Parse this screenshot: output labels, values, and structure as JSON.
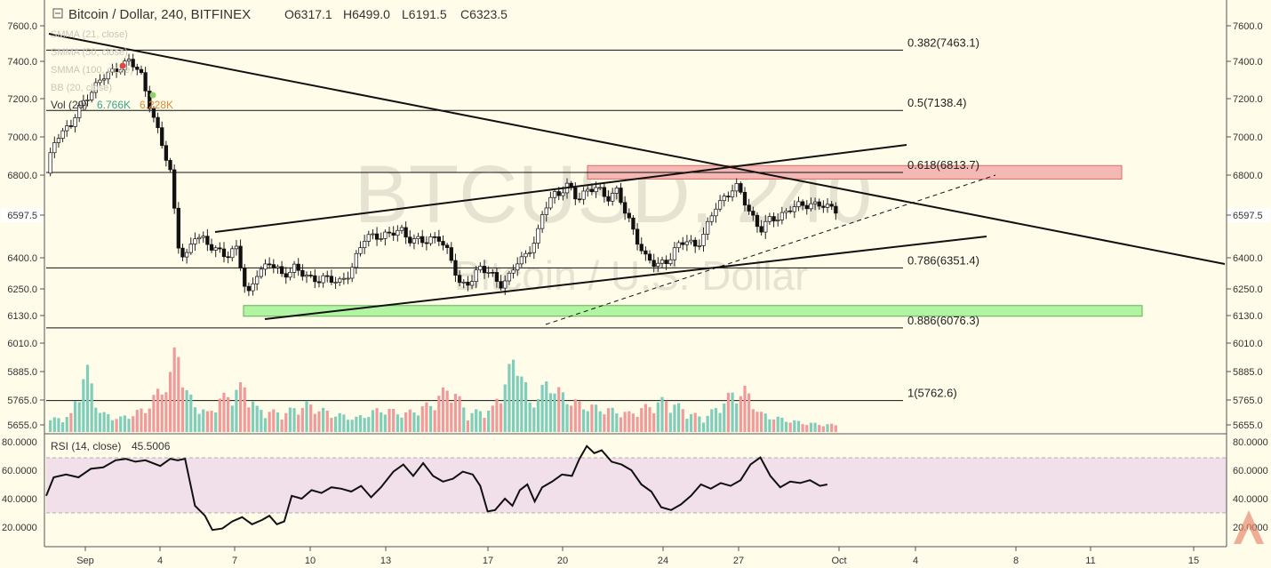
{
  "header": {
    "symbol": "Bitcoin / Dollar, 240, BITFINEX",
    "open": "O6317.1",
    "high": "H6499.0",
    "low": "L6191.5",
    "close": "C6323.5"
  },
  "indicators": [
    "SMMA (21, close)",
    "SMMA (50, close)",
    "SMMA (100, close)",
    "BB (20, close)"
  ],
  "volume_legend": {
    "label": "Vol (20)",
    "value_a": "6.766K",
    "value_b": "6.228K"
  },
  "watermark": {
    "ticker": "BTCUSD, 240",
    "name": "Bitcoin / U.S. Dollar"
  },
  "rsi_legend": {
    "label": "RSI (14, close)",
    "value": "45.5006"
  },
  "colors": {
    "background": "#fffce9",
    "up_volume": "#7fcdbb",
    "down_volume": "#f19a9a",
    "fib_line": "#111111",
    "resistance_zone": "#f4b9b4",
    "support_zone": "#b3f4a4",
    "rsi_band": "#f1e0ea",
    "price_tag": "#ffffff"
  },
  "chart_data": [
    {
      "type": "candlestick",
      "title": "Bitcoin / Dollar, 240, BITFINEX",
      "y_ticks": [
        "7600.0",
        "7400.0",
        "7200.0",
        "7000.0",
        "6800.0",
        "6597.5",
        "6400.0",
        "6250.0",
        "6130.0",
        "6010.0",
        "5885.0",
        "5765.0",
        "5655.0"
      ],
      "y_tick_values": [
        7600,
        7400,
        7200,
        7000,
        6800,
        6597.5,
        6400,
        6250,
        6130,
        6010,
        5885,
        5765,
        5655
      ],
      "current_price_label": "6597.5",
      "x_ticks": [
        "Sep",
        "4",
        "7",
        "10",
        "13",
        "17",
        "20",
        "24",
        "27",
        "Oct",
        "4",
        "8",
        "11",
        "15"
      ],
      "fib_levels": [
        {
          "label": "0.382(7463.1)",
          "value": 7463.1
        },
        {
          "label": "0.5(7138.4)",
          "value": 7138.4
        },
        {
          "label": "0.618(6813.7)",
          "value": 6813.7
        },
        {
          "label": "0.786(6351.4)",
          "value": 6351.4
        },
        {
          "label": "0.886(6076.3)",
          "value": 6076.3
        },
        {
          "label": "1(5762.6)",
          "value": 5762.6
        }
      ],
      "zones": [
        {
          "kind": "resistance",
          "low": 6780,
          "high": 6850
        },
        {
          "kind": "support",
          "low": 6135,
          "high": 6175
        }
      ],
      "price_path": [
        [
          0.0,
          6810
        ],
        [
          0.4,
          7010
        ],
        [
          1.0,
          7060
        ],
        [
          1.6,
          7210
        ],
        [
          2.2,
          7300
        ],
        [
          2.8,
          7360
        ],
        [
          3.3,
          7400
        ],
        [
          3.8,
          7340
        ],
        [
          4.2,
          7160
        ],
        [
          4.6,
          6980
        ],
        [
          5.0,
          6820
        ],
        [
          5.3,
          6480
        ],
        [
          5.6,
          6380
        ],
        [
          6.0,
          6500
        ],
        [
          6.4,
          6490
        ],
        [
          6.9,
          6420
        ],
        [
          7.3,
          6410
        ],
        [
          7.7,
          6460
        ],
        [
          8.1,
          6190
        ],
        [
          8.5,
          6330
        ],
        [
          9.0,
          6380
        ],
        [
          9.5,
          6310
        ],
        [
          10.0,
          6360
        ],
        [
          10.6,
          6290
        ],
        [
          11.2,
          6310
        ],
        [
          11.8,
          6270
        ],
        [
          12.3,
          6350
        ],
        [
          12.8,
          6480
        ],
        [
          13.3,
          6510
        ],
        [
          13.8,
          6500
        ],
        [
          14.3,
          6530
        ],
        [
          14.8,
          6480
        ],
        [
          15.3,
          6470
        ],
        [
          15.8,
          6510
        ],
        [
          16.3,
          6390
        ],
        [
          16.7,
          6270
        ],
        [
          17.1,
          6290
        ],
        [
          17.5,
          6340
        ],
        [
          17.9,
          6340
        ],
        [
          18.3,
          6270
        ],
        [
          18.6,
          6280
        ],
        [
          19.0,
          6390
        ],
        [
          19.4,
          6420
        ],
        [
          19.8,
          6490
        ],
        [
          20.1,
          6640
        ],
        [
          20.4,
          6710
        ],
        [
          20.7,
          6700
        ],
        [
          21.0,
          6740
        ],
        [
          21.4,
          6690
        ],
        [
          21.8,
          6720
        ],
        [
          22.2,
          6730
        ],
        [
          22.6,
          6690
        ],
        [
          23.0,
          6720
        ],
        [
          23.4,
          6590
        ],
        [
          23.8,
          6500
        ],
        [
          24.2,
          6390
        ],
        [
          24.6,
          6360
        ],
        [
          25.0,
          6390
        ],
        [
          25.4,
          6440
        ],
        [
          25.8,
          6480
        ],
        [
          26.2,
          6460
        ],
        [
          26.6,
          6520
        ],
        [
          27.0,
          6640
        ],
        [
          27.4,
          6700
        ],
        [
          27.8,
          6740
        ],
        [
          28.1,
          6680
        ],
        [
          28.4,
          6610
        ],
        [
          28.8,
          6530
        ],
        [
          29.2,
          6570
        ],
        [
          29.6,
          6600
        ],
        [
          30.0,
          6630
        ],
        [
          30.4,
          6640
        ],
        [
          30.8,
          6660
        ],
        [
          31.2,
          6650
        ],
        [
          31.5,
          6630
        ]
      ],
      "volume_path": [
        [
          0.0,
          12
        ],
        [
          1.0,
          18
        ],
        [
          1.6,
          70
        ],
        [
          2.2,
          20
        ],
        [
          3.0,
          15
        ],
        [
          4.0,
          25
        ],
        [
          5.0,
          60
        ],
        [
          5.3,
          100
        ],
        [
          5.6,
          45
        ],
        [
          6.0,
          30
        ],
        [
          6.5,
          20
        ],
        [
          7.0,
          35
        ],
        [
          8.0,
          50
        ],
        [
          8.5,
          25
        ],
        [
          9.5,
          20
        ],
        [
          10.5,
          30
        ],
        [
          11.5,
          20
        ],
        [
          12.5,
          15
        ],
        [
          13.5,
          25
        ],
        [
          14.5,
          20
        ],
        [
          15.5,
          30
        ],
        [
          16.3,
          50
        ],
        [
          17.0,
          20
        ],
        [
          18.0,
          25
        ],
        [
          19.0,
          85
        ],
        [
          19.5,
          30
        ],
        [
          20.3,
          55
        ],
        [
          20.8,
          40
        ],
        [
          21.5,
          30
        ],
        [
          22.5,
          25
        ],
        [
          23.5,
          20
        ],
        [
          24.5,
          30
        ],
        [
          25.0,
          35
        ],
        [
          26.0,
          20
        ],
        [
          26.5,
          15
        ],
        [
          27.0,
          25
        ],
        [
          27.6,
          40
        ],
        [
          28.2,
          45
        ],
        [
          28.8,
          20
        ],
        [
          29.5,
          15
        ],
        [
          30.5,
          10
        ],
        [
          31.5,
          8
        ]
      ]
    },
    {
      "type": "line",
      "title": "RSI (14, close)",
      "y_ticks": [
        "80.0000",
        "60.0000",
        "40.0000",
        "20.0000"
      ],
      "y_tick_values": [
        80,
        60,
        40,
        20
      ],
      "band": [
        30,
        70
      ],
      "rsi_path": [
        [
          0.0,
          42
        ],
        [
          0.3,
          55
        ],
        [
          0.8,
          57
        ],
        [
          1.3,
          55
        ],
        [
          1.8,
          61
        ],
        [
          2.3,
          62
        ],
        [
          2.8,
          67
        ],
        [
          3.2,
          68
        ],
        [
          3.6,
          66
        ],
        [
          4.0,
          67
        ],
        [
          4.6,
          63
        ],
        [
          5.0,
          68
        ],
        [
          5.3,
          67
        ],
        [
          5.6,
          68
        ],
        [
          6.0,
          35
        ],
        [
          6.4,
          28
        ],
        [
          6.7,
          18
        ],
        [
          7.1,
          19
        ],
        [
          7.5,
          24
        ],
        [
          7.9,
          27
        ],
        [
          8.3,
          22
        ],
        [
          8.7,
          25
        ],
        [
          9.0,
          28
        ],
        [
          9.3,
          22
        ],
        [
          9.6,
          24
        ],
        [
          9.9,
          42
        ],
        [
          10.3,
          40
        ],
        [
          10.7,
          46
        ],
        [
          11.1,
          44
        ],
        [
          11.5,
          48
        ],
        [
          11.9,
          47
        ],
        [
          12.3,
          45
        ],
        [
          12.7,
          49
        ],
        [
          13.1,
          41
        ],
        [
          13.5,
          48
        ],
        [
          14.0,
          59
        ],
        [
          14.4,
          64
        ],
        [
          14.8,
          56
        ],
        [
          15.2,
          65
        ],
        [
          15.6,
          56
        ],
        [
          16.0,
          52
        ],
        [
          16.4,
          54
        ],
        [
          16.8,
          59
        ],
        [
          17.2,
          57
        ],
        [
          17.5,
          49
        ],
        [
          17.8,
          31
        ],
        [
          18.1,
          32
        ],
        [
          18.5,
          40
        ],
        [
          18.8,
          35
        ],
        [
          19.1,
          46
        ],
        [
          19.4,
          50
        ],
        [
          19.7,
          38
        ],
        [
          20.0,
          48
        ],
        [
          20.4,
          52
        ],
        [
          20.8,
          57
        ],
        [
          21.2,
          56
        ],
        [
          21.5,
          68
        ],
        [
          21.8,
          77
        ],
        [
          22.1,
          72
        ],
        [
          22.4,
          74
        ],
        [
          22.8,
          66
        ],
        [
          23.2,
          64
        ],
        [
          23.6,
          60
        ],
        [
          24.0,
          50
        ],
        [
          24.4,
          45
        ],
        [
          24.8,
          34
        ],
        [
          25.2,
          32
        ],
        [
          25.6,
          36
        ],
        [
          26.0,
          42
        ],
        [
          26.4,
          50
        ],
        [
          26.8,
          47
        ],
        [
          27.2,
          51
        ],
        [
          27.6,
          49
        ],
        [
          28.0,
          53
        ],
        [
          28.4,
          64
        ],
        [
          28.8,
          69
        ],
        [
          29.2,
          56
        ],
        [
          29.6,
          48
        ],
        [
          30.0,
          52
        ],
        [
          30.4,
          51
        ],
        [
          30.8,
          53
        ],
        [
          31.2,
          49
        ],
        [
          31.5,
          50
        ]
      ]
    }
  ]
}
